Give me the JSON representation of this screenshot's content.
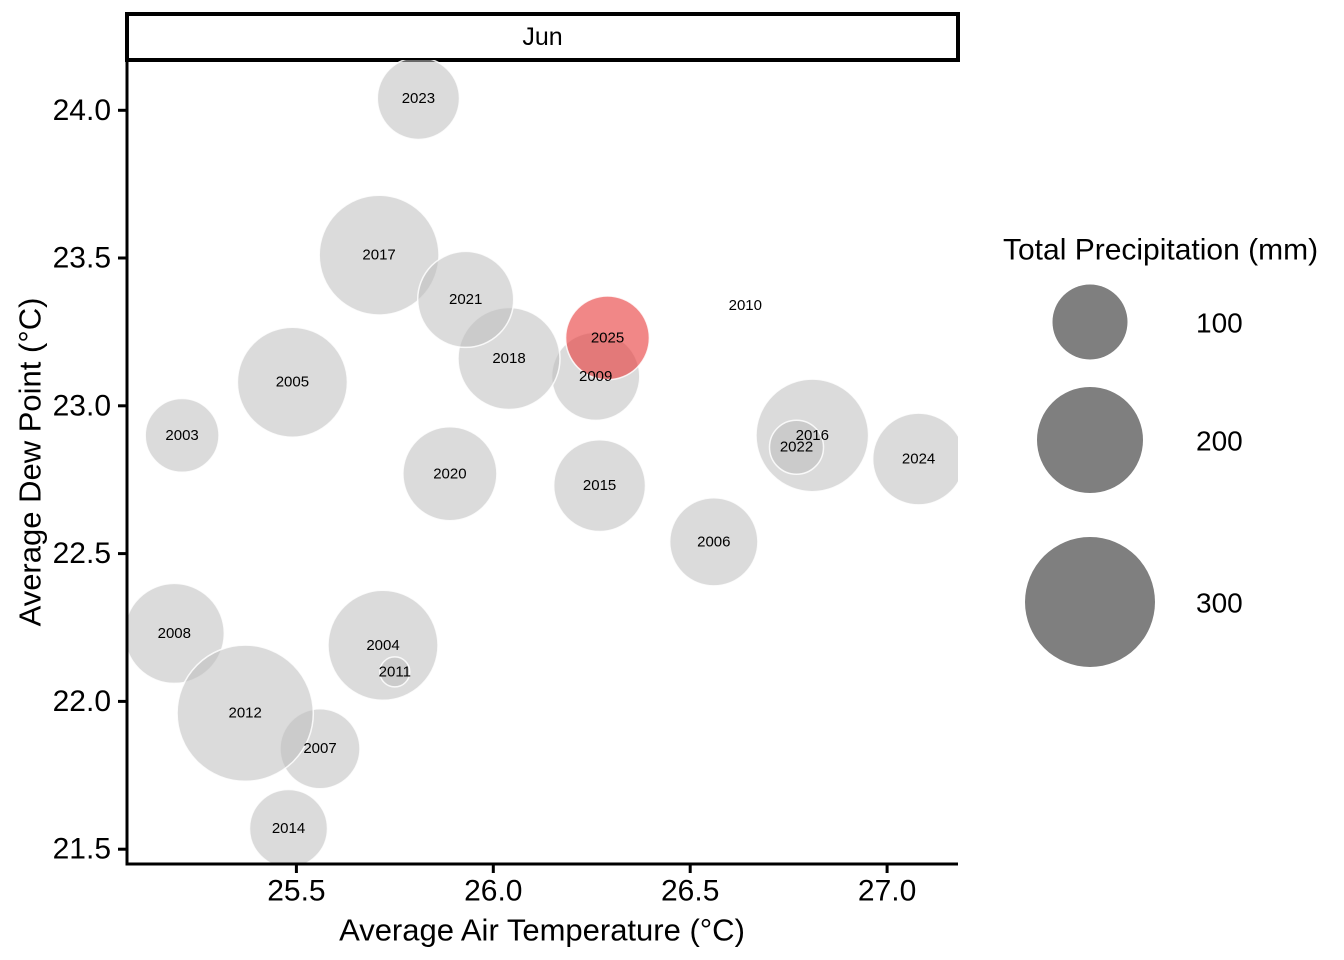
{
  "page": {
    "background": "#FFFFFF"
  },
  "chart_data": {
    "type": "scatter",
    "subtype": "bubble",
    "facet_label": "Jun",
    "xlabel": "Average Air Temperature (°C)",
    "ylabel": "Average Dew Point (°C)",
    "xlim": [
      25.07,
      27.18
    ],
    "ylim": [
      21.45,
      24.17
    ],
    "x_ticks": [
      25.5,
      26.0,
      26.5,
      27.0
    ],
    "y_ticks": [
      21.5,
      22.0,
      22.5,
      23.0,
      23.5,
      24.0
    ],
    "grid": false,
    "legend": {
      "title": "Total Precipitation (mm)",
      "values": [
        100,
        200,
        300
      ],
      "position": "right"
    },
    "highlight_year": "2025",
    "points": [
      {
        "year": "2003",
        "x": 25.21,
        "y": 22.9,
        "size": 97
      },
      {
        "year": "2004",
        "x": 25.72,
        "y": 22.19,
        "size": 215
      },
      {
        "year": "2005",
        "x": 25.49,
        "y": 23.08,
        "size": 215
      },
      {
        "year": "2006",
        "x": 26.56,
        "y": 22.54,
        "size": 138
      },
      {
        "year": "2007",
        "x": 25.56,
        "y": 21.84,
        "size": 114
      },
      {
        "year": "2008",
        "x": 25.19,
        "y": 22.23,
        "size": 178
      },
      {
        "year": "2009",
        "x": 26.26,
        "y": 23.1,
        "size": 138
      },
      {
        "year": "2010",
        "x": 26.64,
        "y": 23.34,
        "size": 0.2
      },
      {
        "year": "2011",
        "x": 25.75,
        "y": 22.1,
        "size": 16
      },
      {
        "year": "2012",
        "x": 25.37,
        "y": 21.96,
        "size": 330
      },
      {
        "year": "2014",
        "x": 25.48,
        "y": 21.57,
        "size": 108
      },
      {
        "year": "2015",
        "x": 26.27,
        "y": 22.73,
        "size": 150
      },
      {
        "year": "2016",
        "x": 26.81,
        "y": 22.9,
        "size": 225
      },
      {
        "year": "2017",
        "x": 25.71,
        "y": 23.51,
        "size": 255
      },
      {
        "year": "2018",
        "x": 26.04,
        "y": 23.16,
        "size": 185
      },
      {
        "year": "2020",
        "x": 25.89,
        "y": 22.77,
        "size": 157
      },
      {
        "year": "2021",
        "x": 25.93,
        "y": 23.36,
        "size": 164
      },
      {
        "year": "2022",
        "x": 26.77,
        "y": 22.86,
        "size": 52
      },
      {
        "year": "2023",
        "x": 25.81,
        "y": 24.04,
        "size": 120
      },
      {
        "year": "2024",
        "x": 27.08,
        "y": 22.82,
        "size": 150
      },
      {
        "year": "2025",
        "x": 26.29,
        "y": 23.23,
        "size": 125
      }
    ]
  },
  "colors": {
    "bubble_fill": "#BEBEBE",
    "bubble_fill_opacity": 0.55,
    "bubble_stroke": "#FFFFFF",
    "bubble_stroke_opacity": 0.85,
    "highlight_fill": "#E93E3E",
    "highlight_fill_opacity": 0.62,
    "legend_circle_fill": "#7F7F7F",
    "axis_color": "#000000",
    "strip_fill": "#FFFFFF",
    "strip_border": "#000000",
    "text_color": "#000000"
  }
}
